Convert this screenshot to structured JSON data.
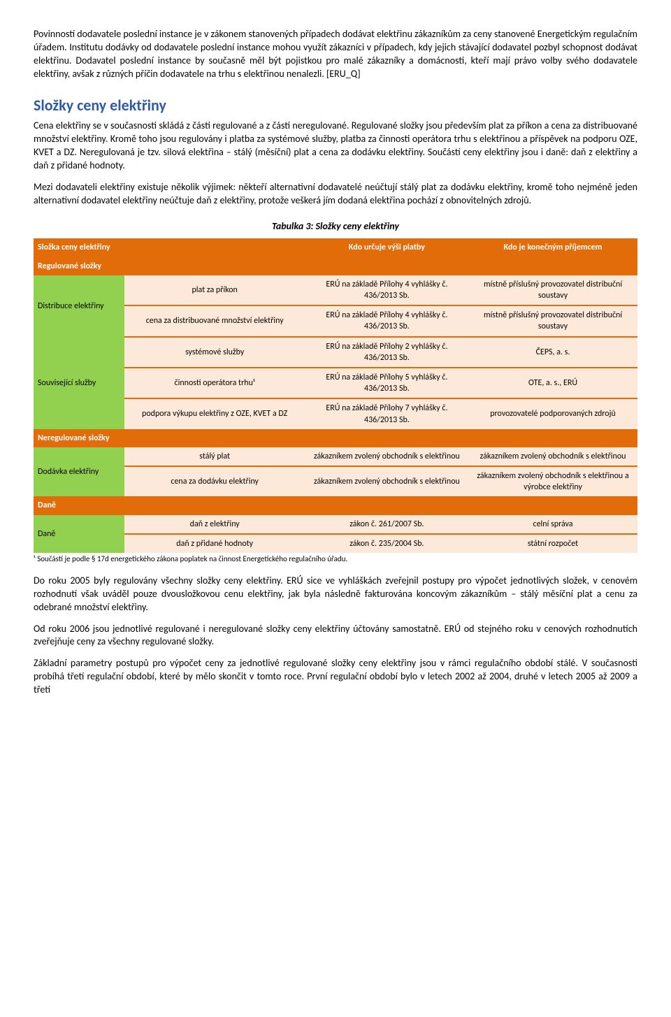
{
  "intro": {
    "p1": "Povinností dodavatele poslední instance je v zákonem stanovených případech dodávat elektřinu zákazníkům za ceny stanovené Energetickým regulačním úřadem. Institutu dodávky od dodavatele poslední instance mohou využít zákazníci v případech, kdy jejich stávající dodavatel pozbyl schopnost dodávat elektřinu. Dodavatel poslední instance by současně měl být pojistkou pro malé zákazníky a domácnosti, kteří mají právo volby svého dodavatele elektřiny, avšak z různých příčin dodavatele na trhu s elektřinou nenalezli. [ERU_Q]"
  },
  "section": {
    "title": "Složky ceny elektřiny",
    "p1": "Cena elektřiny se v současnosti skládá z části regulované a z části neregulované. Regulované složky jsou především plat za příkon a cena za distribuované množství elektřiny. Kromě toho jsou regulovány i platba za systémové služby, platba za činnosti operátora trhu s elektřinou a příspěvek na podporu OZE, KVET a DZ. Neregulovaná je tzv. silová elektřina – stálý (měsíční) plat a cena za dodávku elektřiny. Součástí ceny elektřiny jsou i daně: daň z elektřiny a daň z přidané hodnoty.",
    "p2": "Mezi dodavateli elektřiny existuje několik výjimek: někteří alternativní dodavatelé neúčtují stálý plat za dodávku elektřiny, kromě toho nejméně jeden alternativní dodavatel elektřiny neúčtuje daň z elektřiny, protože veškerá jím dodaná elektřina pochází z obnovitelných zdrojů."
  },
  "table": {
    "caption": "Tabulka 3: Složky ceny elektřiny",
    "headers": {
      "h1": "Složka ceny elektřiny",
      "h2": "Kdo určuje výši platby",
      "h3": "Kdo je konečným příjemcem"
    },
    "sections": {
      "regulated": "Regulované složky",
      "unregulated": "Neregulované složky",
      "taxes": "Daně"
    },
    "groups": {
      "distribution": "Distribuce elektřiny",
      "related": "Související služby",
      "delivery": "Dodávka elektřiny",
      "tax": "Daně"
    },
    "rows": {
      "r1": {
        "item": "plat za příkon",
        "who": "ERÚ na základě Přílohy 4 vyhlášky č. 436/2013 Sb.",
        "recipient": "místně příslušný provozovatel distribuční soustavy"
      },
      "r2": {
        "item": "cena za distribuované množství elektřiny",
        "who": "ERÚ na základě Přílohy 4 vyhlášky č. 436/2013 Sb.",
        "recipient": "místně příslušný provozovatel distribuční soustavy"
      },
      "r3": {
        "item": "systémové služby",
        "who": "ERÚ na základě Přílohy 2 vyhlášky č. 436/2013 Sb.",
        "recipient": "ČEPS, a. s."
      },
      "r4": {
        "item": "činnosti operátora trhu¹",
        "who": "ERÚ na základě Přílohy 5 vyhlášky č. 436/2013 Sb.",
        "recipient": "OTE, a. s., ERÚ"
      },
      "r5": {
        "item": "podpora výkupu elektřiny z OZE, KVET a DZ",
        "who": "ERÚ na základě Přílohy 7 vyhlášky č. 436/2013 Sb.",
        "recipient": "provozovatelé podporovaných zdrojů"
      },
      "r6": {
        "item": "stálý plat",
        "who": "zákazníkem zvolený obchodník s elektřinou",
        "recipient": "zákazníkem zvolený obchodník s elektřinou"
      },
      "r7": {
        "item": "cena za dodávku elektřiny",
        "who": "zákazníkem zvolený obchodník s elektřinou",
        "recipient": "zákazníkem zvolený obchodník s elektřinou a výrobce elektřiny"
      },
      "r8": {
        "item": "daň z elektřiny",
        "who": "zákon č. 261/2007 Sb.",
        "recipient": "celní správa"
      },
      "r9": {
        "item": "daň z přidané hodnoty",
        "who": "zákon č. 235/2004 Sb.",
        "recipient": "státní rozpočet"
      }
    },
    "footnote": "¹ Součástí je podle § 17d energetického zákona poplatek na činnost Energetického regulačního úřadu."
  },
  "closing": {
    "p1": "Do roku 2005 byly regulovány všechny složky ceny elektřiny. ERÚ sice ve vyhláškách zveřejnil postupy pro výpočet jednotlivých složek, v cenovém rozhodnutí však uváděl pouze dvousložkovou cenu elektřiny, jak byla následně fakturována koncovým zákazníkům – stálý měsíční plat a cenu za odebrané množství elektřiny.",
    "p2": "Od roku 2006 jsou jednotlivé regulované i neregulované složky ceny elektřiny účtovány samostatně. ERÚ od stejného roku v cenových rozhodnutích zveřejňuje ceny za všechny regulované složky.",
    "p3": "Základní parametry postupů pro výpočet ceny za jednotlivé regulované složky ceny elektřiny jsou v rámci regulačního období stálé. V současnosti probíhá třetí regulační období, které by mělo skončit v tomto roce. První regulační období bylo v letech 2002 až 2004, druhé v letech 2005 až 2009 a třetí"
  }
}
